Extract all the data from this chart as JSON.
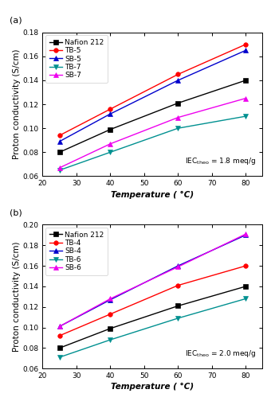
{
  "temperatures": [
    25,
    40,
    60,
    80
  ],
  "panel_a": {
    "title_label": "(a)",
    "series": [
      {
        "label": "Nafion 212",
        "color": "#000000",
        "marker": "s",
        "values": [
          0.08,
          0.099,
          0.121,
          0.14
        ]
      },
      {
        "label": "TB-5",
        "color": "#ff0000",
        "marker": "o",
        "values": [
          0.094,
          0.116,
          0.145,
          0.17
        ]
      },
      {
        "label": "SB-5",
        "color": "#0000cc",
        "marker": "^",
        "values": [
          0.089,
          0.112,
          0.14,
          0.165
        ]
      },
      {
        "label": "TB-7",
        "color": "#009090",
        "marker": "v",
        "values": [
          0.065,
          0.08,
          0.1,
          0.11
        ]
      },
      {
        "label": "SB-7",
        "color": "#ee00ee",
        "marker": "^",
        "values": [
          0.067,
          0.087,
          0.109,
          0.125
        ]
      }
    ],
    "ylim": [
      0.06,
      0.18
    ],
    "yticks": [
      0.06,
      0.08,
      0.1,
      0.12,
      0.14,
      0.16,
      0.18
    ],
    "annotation_main": "IEC",
    "annotation_sub": "theo",
    "annotation_rest": " = 1.8 meq/g"
  },
  "panel_b": {
    "title_label": "(b)",
    "series": [
      {
        "label": "Nafion 212",
        "color": "#000000",
        "marker": "s",
        "values": [
          0.08,
          0.099,
          0.121,
          0.14
        ]
      },
      {
        "label": "TB-4",
        "color": "#ff0000",
        "marker": "o",
        "values": [
          0.092,
          0.113,
          0.141,
          0.16
        ]
      },
      {
        "label": "SB-4",
        "color": "#0000cc",
        "marker": "^",
        "values": [
          0.101,
          0.127,
          0.16,
          0.19
        ]
      },
      {
        "label": "TB-6",
        "color": "#009090",
        "marker": "v",
        "values": [
          0.071,
          0.088,
          0.109,
          0.128
        ]
      },
      {
        "label": "SB-6",
        "color": "#ee00ee",
        "marker": "^",
        "values": [
          0.101,
          0.128,
          0.159,
          0.191
        ]
      }
    ],
    "ylim": [
      0.06,
      0.2
    ],
    "yticks": [
      0.06,
      0.08,
      0.1,
      0.12,
      0.14,
      0.16,
      0.18,
      0.2
    ],
    "annotation_main": "IEC",
    "annotation_sub": "theo",
    "annotation_rest": " = 2.0 meq/g"
  },
  "xlabel": "Temperature (°C)",
  "ylabel": "Proton conductivity (S/cm)",
  "xlim": [
    20,
    85
  ],
  "xticks": [
    20,
    30,
    40,
    50,
    60,
    70,
    80
  ],
  "marker_size": 4,
  "linewidth": 1.0,
  "fontsize_label": 7.5,
  "fontsize_tick": 6.5,
  "fontsize_legend": 6.5,
  "fontsize_annotation": 6.5,
  "fontsize_panel_label": 8
}
